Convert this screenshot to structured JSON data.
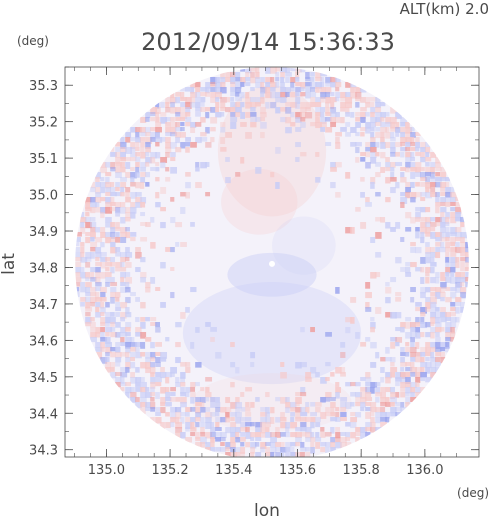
{
  "chart_data": {
    "type": "heatmap",
    "title": "2012/09/14 15:36:33",
    "altitude_label": "ALT(km) 2.0",
    "xlabel": "lon",
    "ylabel": "lat",
    "x_unit": "(deg)",
    "y_unit": "(deg)",
    "xlim": [
      134.87,
      136.17
    ],
    "ylim": [
      34.28,
      35.35
    ],
    "x_ticks": [
      135.0,
      135.2,
      135.4,
      135.6,
      135.8,
      136.0
    ],
    "x_tick_labels": [
      "135.0",
      "135.2",
      "135.4",
      "135.6",
      "135.8",
      "136.0"
    ],
    "y_ticks": [
      34.3,
      34.4,
      34.5,
      34.6,
      34.7,
      34.8,
      34.9,
      35.0,
      35.1,
      35.2,
      35.3
    ],
    "y_tick_labels": [
      "34.3",
      "34.4",
      "34.5",
      "34.6",
      "34.7",
      "34.8",
      "34.9",
      "35.0",
      "35.1",
      "35.2",
      "35.3"
    ],
    "domain": {
      "shape": "circle",
      "center_lon": 135.52,
      "center_lat": 34.81,
      "radius_deg_lat": 0.54
    },
    "value_pattern": {
      "background": "#f4f2fa",
      "positive_color": "#f6c9c9",
      "negative_color": "#c8cdf6",
      "strong_negative_color": "#9aa4ee",
      "strong_positive_color": "#ee9f9f",
      "regions": [
        {
          "sign": "positive",
          "lon": 135.52,
          "lat": 35.12,
          "rx": 0.17,
          "ry": 0.18,
          "level": 0.3
        },
        {
          "sign": "positive",
          "lon": 135.48,
          "lat": 34.98,
          "rx": 0.12,
          "ry": 0.09,
          "level": 0.25
        },
        {
          "sign": "negative",
          "lon": 135.52,
          "lat": 34.62,
          "rx": 0.28,
          "ry": 0.14,
          "level": 0.35
        },
        {
          "sign": "negative",
          "lon": 135.52,
          "lat": 34.78,
          "rx": 0.14,
          "ry": 0.06,
          "level": 0.45
        },
        {
          "sign": "negative",
          "lon": 135.62,
          "lat": 34.86,
          "rx": 0.1,
          "ry": 0.08,
          "level": 0.2
        },
        {
          "sign": "positive",
          "lon": 135.52,
          "lat": 34.43,
          "rx": 0.25,
          "ry": 0.08,
          "level": 0.12
        }
      ],
      "noisy_ring_inner_fraction": 0.72
    }
  }
}
